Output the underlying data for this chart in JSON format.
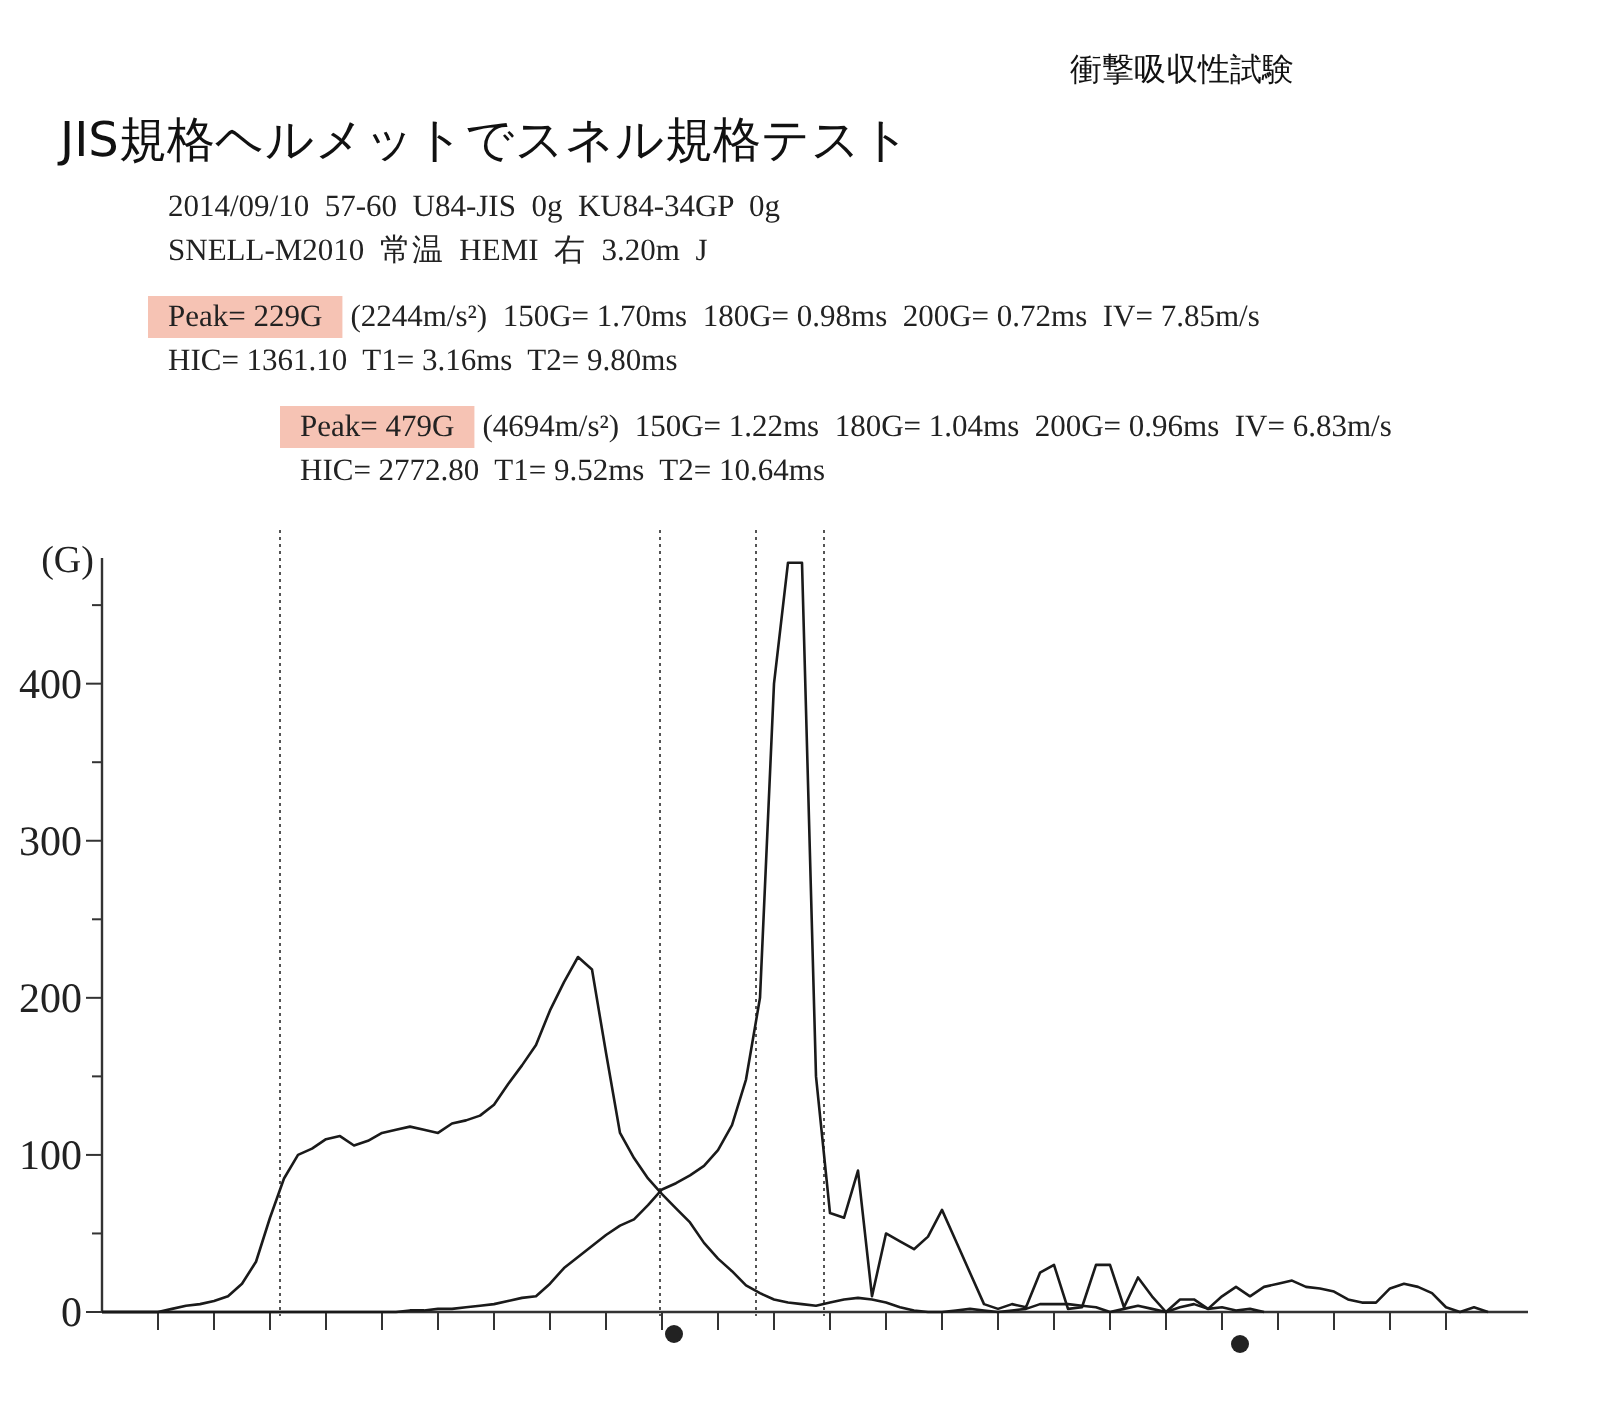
{
  "chart_data": {
    "type": "line",
    "title": "JIS規格ヘルメットでスネル規格テスト",
    "subtitle": "衝撃吸収性試験",
    "ylabel": "(G)",
    "annotations": [
      "2014/09/10  57-60  U84-JIS  0g  KU84-34GP  0g",
      "SNELL-M2010  常温  HEMI  右  3.20m  J",
      "Peak= 229G",
      "(2244m/s²)  150G= 1.70ms  180G= 0.98ms  200G= 0.72ms  IV= 7.85m/s",
      "HIC= 1361.10  T1= 3.16ms  T2= 9.80ms",
      "Peak= 479G",
      "(4694m/s²)  150G= 1.22ms  180G= 1.04ms  200G= 0.96ms  IV= 6.83m/s",
      "HIC= 2772.80  T1= 9.52ms  T2= 10.64ms"
    ],
    "categories": [
      null,
      null,
      null,
      null,
      null,
      null,
      null,
      null,
      null,
      null,
      null,
      null,
      null,
      null,
      null,
      null,
      null,
      null,
      null,
      null,
      null,
      null,
      null,
      null,
      null,
      null,
      null,
      null,
      null,
      null,
      null,
      null,
      null,
      null,
      null,
      null,
      null,
      null,
      null,
      null,
      null,
      null,
      null,
      null,
      null,
      null,
      null,
      null,
      null,
      null,
      null,
      null,
      null,
      null,
      null,
      null,
      null,
      null,
      null,
      null,
      null,
      null,
      null,
      null,
      null,
      null,
      null,
      null,
      null,
      null,
      null,
      null,
      null,
      null,
      null,
      null,
      null,
      null,
      null,
      null,
      null,
      null,
      null,
      null,
      null,
      null,
      null,
      null,
      null,
      null,
      null,
      null,
      null,
      null,
      null,
      null,
      null,
      null,
      null,
      null
    ],
    "series": [
      {
        "color": "#1a1a1a",
        "values": [
          0,
          0,
          0,
          0,
          0,
          2,
          4,
          5,
          7,
          10,
          18,
          32,
          60,
          85,
          100,
          104,
          110,
          112,
          106,
          109,
          114,
          116,
          118,
          116,
          114,
          120,
          122,
          125,
          132,
          145,
          157,
          170,
          192,
          210,
          226,
          218,
          165,
          114,
          98,
          85,
          75,
          66,
          57,
          44,
          34,
          26,
          17,
          12,
          8,
          6,
          5,
          4,
          6,
          8,
          9,
          8,
          6,
          3,
          1,
          0,
          0,
          1,
          2,
          1,
          0,
          1,
          2,
          5,
          5,
          5,
          4,
          3,
          0,
          2,
          4,
          2,
          0,
          3,
          5,
          2,
          3,
          1,
          2,
          0,
          null,
          null,
          null,
          null,
          null,
          null,
          null,
          null,
          null,
          null,
          null,
          null,
          null,
          null,
          null,
          null
        ]
      },
      {
        "color": "#1a1a1a",
        "values": [
          0,
          0,
          0,
          0,
          0,
          0,
          0,
          0,
          0,
          0,
          0,
          0,
          0,
          0,
          0,
          0,
          0,
          0,
          0,
          0,
          0,
          0,
          1,
          1,
          2,
          2,
          3,
          4,
          5,
          7,
          9,
          10,
          18,
          28,
          35,
          42,
          49,
          55,
          59,
          68,
          78,
          82,
          87,
          93,
          103,
          119,
          148,
          200,
          400,
          477,
          477,
          150,
          63,
          60,
          90,
          10,
          50,
          45,
          40,
          48,
          65,
          45,
          25,
          5,
          2,
          5,
          3,
          25,
          30,
          2,
          3,
          30,
          30,
          3,
          22,
          10,
          0,
          8,
          8,
          2,
          10,
          16,
          10,
          16,
          18,
          20,
          16,
          15,
          13,
          8,
          6,
          6,
          15,
          18,
          16,
          12,
          3,
          0,
          3,
          0
        ]
      }
    ],
    "ylim": [
      0,
      480
    ],
    "yticks": [
      0,
      {
        "value": 50,
        "label": null
      },
      100,
      {
        "value": 150,
        "label": null
      },
      200,
      {
        "value": 250,
        "label": null
      },
      300,
      {
        "value": 350,
        "label": null
      },
      400,
      {
        "value": 450,
        "label": null
      }
    ]
  }
}
